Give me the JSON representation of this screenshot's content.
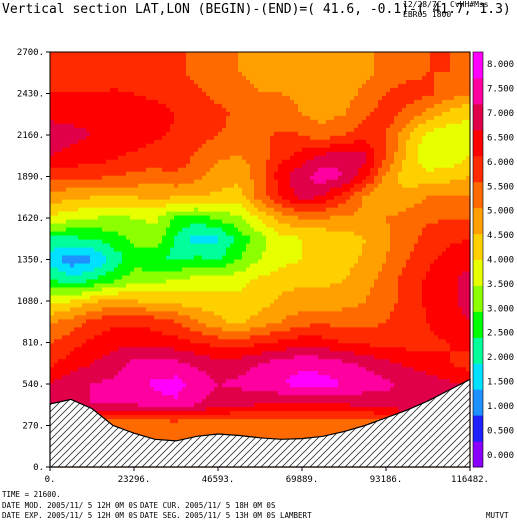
{
  "header": {
    "title": "Vertical section LAT,LON (BEGIN)-(END)=( 41.6, -0.1)-( 41.7,  1.3)",
    "date": "12/28/7C",
    "program": "CvHH#Mss",
    "experiment": "EBR05 1800"
  },
  "footer": {
    "time": "TIME =     21600.",
    "line1_left": "DATE MOD. 2005/11/ 5  12H 0M 0S",
    "line1_right": "DATE CUR. 2005/11/ 5  18H 0M 0S",
    "line2_left": "DATE EXP. 2005/11/ 5  12H 0M 0S",
    "line2_right": "DATE SEG. 2005/11/ 5  13H 0M 0S  LAMBERT",
    "variable": "MUTVT"
  },
  "chart_data": {
    "type": "heatmap",
    "title": "Vertical section LAT,LON (BEGIN)-(END)=( 41.6, -0.1)-( 41.7,  1.3)",
    "x_ticks": [
      "0.",
      "23296.",
      "46593.",
      "69889.",
      "93186.",
      "116482."
    ],
    "x_tick_values": [
      0,
      23296,
      46593,
      69889,
      93186,
      116482
    ],
    "y_ticks": [
      "0.",
      "270.",
      "540.",
      "810.",
      "1080.",
      "1350.",
      "1620.",
      "1890.",
      "2160.",
      "2430.",
      "2700."
    ],
    "y_tick_values": [
      0,
      270,
      540,
      810,
      1080,
      1350,
      1620,
      1890,
      2160,
      2430,
      2700
    ],
    "xlim": [
      0,
      116482
    ],
    "ylim": [
      0,
      2700
    ],
    "colorbar_labels": [
      "0.000",
      "0.500",
      "1.000",
      "1.500",
      "2.000",
      "2.500",
      "3.000",
      "3.500",
      "4.000",
      "4.500",
      "5.000",
      "5.500",
      "6.000",
      "6.500",
      "7.000",
      "7.500",
      "8.000"
    ],
    "colorbar_colors": [
      "#8a00ff",
      "#2020ff",
      "#1e90ff",
      "#00e0ff",
      "#00ff9a",
      "#00ff00",
      "#8cff00",
      "#e8ff00",
      "#ffd000",
      "#ffa000",
      "#ff6a00",
      "#ff2a00",
      "#ff0000",
      "#e0004a",
      "#ff00a0",
      "#ff00ff"
    ],
    "levels": [
      0,
      0.5,
      1,
      1.5,
      2,
      2.5,
      3,
      3.5,
      4,
      4.5,
      5,
      5.5,
      6,
      6.5,
      7,
      7.5,
      8
    ],
    "x_grid": [
      0,
      5824,
      11648,
      17472,
      23296,
      29120,
      34945,
      40769,
      46593,
      52417,
      58241,
      64065,
      69889,
      75713,
      81537,
      87361,
      93186,
      99010,
      104834,
      110658,
      116482
    ],
    "y_grid": [
      0,
      135,
      270,
      405,
      540,
      675,
      810,
      945,
      1080,
      1215,
      1350,
      1485,
      1620,
      1755,
      1890,
      2025,
      2160,
      2295,
      2430,
      2565,
      2700
    ],
    "values": [
      [
        5.0,
        5.0,
        5.0,
        5.0,
        5.0,
        5.0,
        5.0,
        5.0,
        5.0,
        5.0,
        5.0,
        5.0,
        5.0,
        5.0,
        5.0,
        5.0,
        5.0,
        5.0,
        5.0,
        5.0,
        5.0
      ],
      [
        5.0,
        5.0,
        5.0,
        5.0,
        5.0,
        5.0,
        5.0,
        5.0,
        5.0,
        5.0,
        5.0,
        5.0,
        5.0,
        5.0,
        5.0,
        5.0,
        5.0,
        5.0,
        5.0,
        5.0,
        5.0
      ],
      [
        5.0,
        5.0,
        5.0,
        5.0,
        5.0,
        5.0,
        5.0,
        5.0,
        5.0,
        5.0,
        5.0,
        5.0,
        5.0,
        5.0,
        5.0,
        5.0,
        5.0,
        5.0,
        5.0,
        5.0,
        5.0
      ],
      [
        7.0,
        7.0,
        7.0,
        7.0,
        7.0,
        7.3,
        7.4,
        7.0,
        6.8,
        6.6,
        6.5,
        6.4,
        6.3,
        6.4,
        6.5,
        6.6,
        6.8,
        7.0,
        7.0,
        7.0,
        6.8
      ],
      [
        6.5,
        6.9,
        7.0,
        7.1,
        7.3,
        7.6,
        7.7,
        7.3,
        7.0,
        7.1,
        7.3,
        7.5,
        7.7,
        7.7,
        7.5,
        7.3,
        7.1,
        6.9,
        6.8,
        6.6,
        6.4
      ],
      [
        5.9,
        6.2,
        6.5,
        6.8,
        7.1,
        7.2,
        7.1,
        6.9,
        6.7,
        6.8,
        7.0,
        7.2,
        7.4,
        7.3,
        7.1,
        6.9,
        6.6,
        6.4,
        6.2,
        6.0,
        5.8
      ],
      [
        5.5,
        5.8,
        6.1,
        6.3,
        6.4,
        6.3,
        6.2,
        6.0,
        5.8,
        5.7,
        5.9,
        6.1,
        6.3,
        6.2,
        6.0,
        5.9,
        5.8,
        5.8,
        5.9,
        6.0,
        6.1
      ],
      [
        4.9,
        5.2,
        5.6,
        5.9,
        5.9,
        5.8,
        5.5,
        5.0,
        4.6,
        4.4,
        4.7,
        5.0,
        5.3,
        5.4,
        5.3,
        5.3,
        5.5,
        5.8,
        6.0,
        6.3,
        6.5
      ],
      [
        3.8,
        4.0,
        4.4,
        4.6,
        4.5,
        4.4,
        4.3,
        4.2,
        4.3,
        4.2,
        4.3,
        4.6,
        4.7,
        4.7,
        4.8,
        5.0,
        5.3,
        5.7,
        6.1,
        6.4,
        6.7
      ],
      [
        2.6,
        2.2,
        2.5,
        2.9,
        3.3,
        3.4,
        3.5,
        3.7,
        3.7,
        3.8,
        4.1,
        4.3,
        4.4,
        4.4,
        4.5,
        4.8,
        5.2,
        5.7,
        6.1,
        6.4,
        6.7
      ],
      [
        1.8,
        1.2,
        1.4,
        2.1,
        2.8,
        2.5,
        2.4,
        2.6,
        2.5,
        3.0,
        3.5,
        3.8,
        4.0,
        4.1,
        4.3,
        4.6,
        5.0,
        5.5,
        5.9,
        6.2,
        6.3
      ],
      [
        2.4,
        2.4,
        2.5,
        2.8,
        3.1,
        3.3,
        2.4,
        1.7,
        1.9,
        2.7,
        3.3,
        3.8,
        4.0,
        4.1,
        4.2,
        4.5,
        4.9,
        5.3,
        5.7,
        5.9,
        6.0
      ],
      [
        3.9,
        3.7,
        3.5,
        3.4,
        3.5,
        3.6,
        2.9,
        2.8,
        3.1,
        3.4,
        4.1,
        4.7,
        5.0,
        5.0,
        4.9,
        4.9,
        5.0,
        5.2,
        5.4,
        5.5,
        5.5
      ],
      [
        4.8,
        4.6,
        4.5,
        4.5,
        4.5,
        4.6,
        4.5,
        4.5,
        4.4,
        4.3,
        5.2,
        6.0,
        6.7,
        6.4,
        5.7,
        4.9,
        4.5,
        4.7,
        5.0,
        5.1,
        5.0
      ],
      [
        5.6,
        5.6,
        5.6,
        5.5,
        5.4,
        5.3,
        5.4,
        5.1,
        4.7,
        4.6,
        5.3,
        6.3,
        6.9,
        7.3,
        7.0,
        6.2,
        4.9,
        4.2,
        4.2,
        4.3,
        4.5
      ],
      [
        6.5,
        6.4,
        6.3,
        6.1,
        5.9,
        5.8,
        5.9,
        5.4,
        5.1,
        5.0,
        5.2,
        5.8,
        6.2,
        6.6,
        6.9,
        6.6,
        5.5,
        4.4,
        3.5,
        3.6,
        4.0
      ],
      [
        6.7,
        6.6,
        6.5,
        6.4,
        6.3,
        6.1,
        5.9,
        5.7,
        5.5,
        5.4,
        5.4,
        5.6,
        5.5,
        5.2,
        5.5,
        5.8,
        5.5,
        4.6,
        3.8,
        3.7,
        3.9
      ],
      [
        6.4,
        6.4,
        6.4,
        6.4,
        6.3,
        6.2,
        6.0,
        5.8,
        5.6,
        5.4,
        5.2,
        5.2,
        5.0,
        4.8,
        5.0,
        5.4,
        5.8,
        5.3,
        4.8,
        4.3,
        4.0
      ],
      [
        6.0,
        6.0,
        6.0,
        6.1,
        6.0,
        5.9,
        5.8,
        5.6,
        5.4,
        5.2,
        5.0,
        5.0,
        4.9,
        4.8,
        4.8,
        5.1,
        5.5,
        5.8,
        5.6,
        5.3,
        5.0
      ],
      [
        5.5,
        5.5,
        5.5,
        5.6,
        5.7,
        5.7,
        5.6,
        5.4,
        5.2,
        5.0,
        4.9,
        4.8,
        4.8,
        4.8,
        4.8,
        4.9,
        5.1,
        5.3,
        5.5,
        5.5,
        5.0
      ],
      [
        5.5,
        5.5,
        5.5,
        5.6,
        5.7,
        5.7,
        5.6,
        5.4,
        5.2,
        5.0,
        4.9,
        4.8,
        4.8,
        4.8,
        4.8,
        4.9,
        5.1,
        5.3,
        5.5,
        5.5,
        5.0
      ]
    ],
    "terrain": {
      "x": [
        0,
        5824,
        11648,
        17472,
        23296,
        29120,
        34945,
        40769,
        46593,
        52417,
        58241,
        64065,
        69889,
        75713,
        81537,
        87361,
        93186,
        99010,
        104834,
        110658,
        116482
      ],
      "height": [
        410,
        440,
        380,
        270,
        220,
        180,
        170,
        200,
        215,
        205,
        190,
        180,
        185,
        200,
        230,
        270,
        320,
        370,
        430,
        500,
        570
      ]
    }
  }
}
